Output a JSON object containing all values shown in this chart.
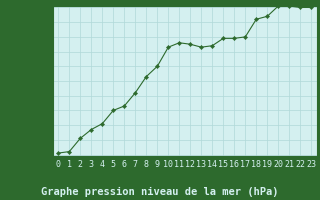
{
  "x": [
    0,
    1,
    2,
    3,
    4,
    5,
    6,
    7,
    8,
    9,
    10,
    11,
    12,
    13,
    14,
    15,
    16,
    17,
    18,
    19,
    20,
    21,
    22,
    23
  ],
  "y": [
    1003.1,
    1003.2,
    1004.1,
    1004.7,
    1005.1,
    1006.0,
    1006.3,
    1007.2,
    1008.3,
    1009.0,
    1010.3,
    1010.6,
    1010.5,
    1010.3,
    1010.4,
    1010.9,
    1010.9,
    1011.0,
    1012.2,
    1012.4,
    1013.1,
    1013.1,
    1013.0,
    1013.0
  ],
  "line_color": "#2d6a2d",
  "marker_color": "#2d6a2d",
  "bg_color": "#d4f0f0",
  "grid_color": "#b0d8d8",
  "border_color": "#2d6a2d",
  "bottom_bg_color": "#2d6a2d",
  "bottom_text_color": "#d4f0f0",
  "xlabel": "Graphe pression niveau de la mer (hPa)",
  "tick_color": "#2d6a2d",
  "tick_fontsize": 6,
  "xlabel_fontsize": 7.5,
  "ylim": [
    1003,
    1013
  ],
  "xlim": [
    -0.5,
    23.5
  ],
  "yticks": [
    1003,
    1004,
    1005,
    1006,
    1007,
    1008,
    1009,
    1010,
    1011,
    1012,
    1013
  ],
  "xticks": [
    0,
    1,
    2,
    3,
    4,
    5,
    6,
    7,
    8,
    9,
    10,
    11,
    12,
    13,
    14,
    15,
    16,
    17,
    18,
    19,
    20,
    21,
    22,
    23
  ]
}
